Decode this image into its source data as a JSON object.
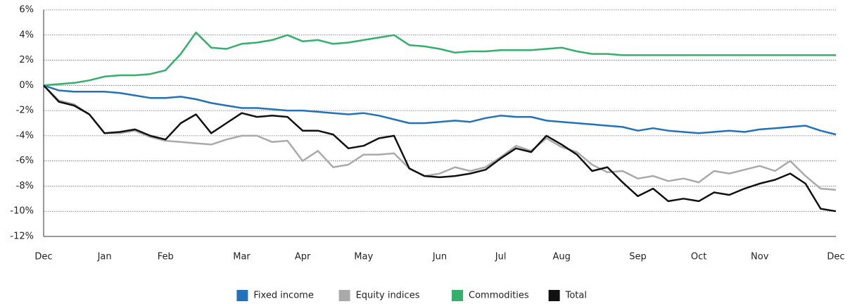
{
  "chart_data": {
    "type": "line",
    "categories": [
      "Dec",
      null,
      null,
      null,
      "Jan",
      null,
      null,
      null,
      "Feb",
      null,
      null,
      null,
      null,
      "Mar",
      null,
      null,
      null,
      "Apr",
      null,
      null,
      null,
      "May",
      null,
      null,
      null,
      null,
      "Jun",
      null,
      null,
      null,
      "Jul",
      null,
      null,
      null,
      "Aug",
      null,
      null,
      null,
      null,
      "Sep",
      null,
      null,
      null,
      "Oct",
      null,
      null,
      null,
      "Nov",
      null,
      null,
      null,
      null,
      "Dec"
    ],
    "series": [
      {
        "name": "Fixed income",
        "color": "#2272b9",
        "values": [
          0,
          -0.4,
          -0.5,
          -0.5,
          -0.5,
          -0.6,
          -0.8,
          -1.0,
          -1.0,
          -0.9,
          -1.1,
          -1.4,
          -1.6,
          -1.8,
          -1.8,
          -1.9,
          -2.0,
          -2.0,
          -2.1,
          -2.2,
          -2.3,
          -2.2,
          -2.4,
          -2.7,
          -3.0,
          -3.0,
          -2.9,
          -2.8,
          -2.9,
          -2.6,
          -2.4,
          -2.5,
          -2.5,
          -2.8,
          -2.9,
          -3.0,
          -3.1,
          -3.2,
          -3.3,
          -3.6,
          -3.4,
          -3.6,
          -3.7,
          -3.8,
          -3.7,
          -3.6,
          -3.7,
          -3.5,
          -3.4,
          -3.3,
          -3.2,
          -3.6,
          -3.9
        ]
      },
      {
        "name": "Equity indices",
        "color": "#aaaaaa",
        "values": [
          0,
          -1.2,
          -1.5,
          -2.3,
          -3.8,
          -3.8,
          -3.6,
          -4.1,
          -4.4,
          -4.5,
          -4.6,
          -4.7,
          -4.3,
          -4.0,
          -4.0,
          -4.5,
          -4.4,
          -6.0,
          -5.2,
          -6.5,
          -6.3,
          -5.5,
          -5.5,
          -5.4,
          -6.6,
          -7.2,
          -7.0,
          -6.5,
          -6.8,
          -6.5,
          -5.7,
          -4.8,
          -5.2,
          -4.2,
          -4.9,
          -5.3,
          -6.3,
          -6.9,
          -6.8,
          -7.4,
          -7.2,
          -7.6,
          -7.4,
          -7.7,
          -6.8,
          -7.0,
          -6.7,
          -6.4,
          -6.8,
          -6.0,
          -7.2,
          -8.2,
          -8.3
        ]
      },
      {
        "name": "Commodities",
        "color": "#34b06c",
        "values": [
          0,
          0.1,
          0.2,
          0.4,
          0.7,
          0.8,
          0.8,
          0.9,
          1.2,
          2.5,
          4.2,
          3.0,
          2.9,
          3.3,
          3.4,
          3.6,
          4.0,
          3.5,
          3.6,
          3.3,
          3.4,
          3.6,
          3.8,
          4.0,
          3.2,
          3.1,
          2.9,
          2.6,
          2.7,
          2.7,
          2.8,
          2.8,
          2.8,
          2.9,
          3.0,
          2.7,
          2.5,
          2.5,
          2.4,
          2.4,
          2.4,
          2.4,
          2.4,
          2.4,
          2.4,
          2.4,
          2.4,
          2.4,
          2.4,
          2.4,
          2.4,
          2.4,
          2.4
        ]
      },
      {
        "name": "Total",
        "color": "#111111",
        "values": [
          0,
          -1.3,
          -1.6,
          -2.3,
          -3.8,
          -3.7,
          -3.5,
          -4.0,
          -4.3,
          -3.0,
          -2.3,
          -3.8,
          -3.0,
          -2.2,
          -2.5,
          -2.4,
          -2.5,
          -3.6,
          -3.6,
          -3.9,
          -5.0,
          -4.8,
          -4.2,
          -4.0,
          -6.6,
          -7.2,
          -7.3,
          -7.2,
          -7.0,
          -6.7,
          -5.8,
          -5.0,
          -5.3,
          -4.0,
          -4.7,
          -5.5,
          -6.8,
          -6.5,
          -7.7,
          -8.8,
          -8.2,
          -9.2,
          -9.0,
          -9.2,
          -8.5,
          -8.7,
          -8.2,
          -7.8,
          -7.5,
          -7.0,
          -7.8,
          -9.8,
          -10.0
        ]
      }
    ],
    "ylim": [
      -12,
      6
    ],
    "yticks": [
      {
        "value": -12,
        "label": "-12%"
      },
      {
        "value": -10,
        "label": "-10%"
      },
      {
        "value": -8,
        "label": "-8%"
      },
      {
        "value": -6,
        "label": "-6%"
      },
      {
        "value": -4,
        "label": "-4%"
      },
      {
        "value": -2,
        "label": "-2%"
      },
      {
        "value": 0,
        "label": "0%"
      },
      {
        "value": 2,
        "label": "2%"
      },
      {
        "value": 4,
        "label": "4%"
      },
      {
        "value": 6,
        "label": "6%"
      }
    ],
    "grid": true,
    "legend": "bottom"
  }
}
